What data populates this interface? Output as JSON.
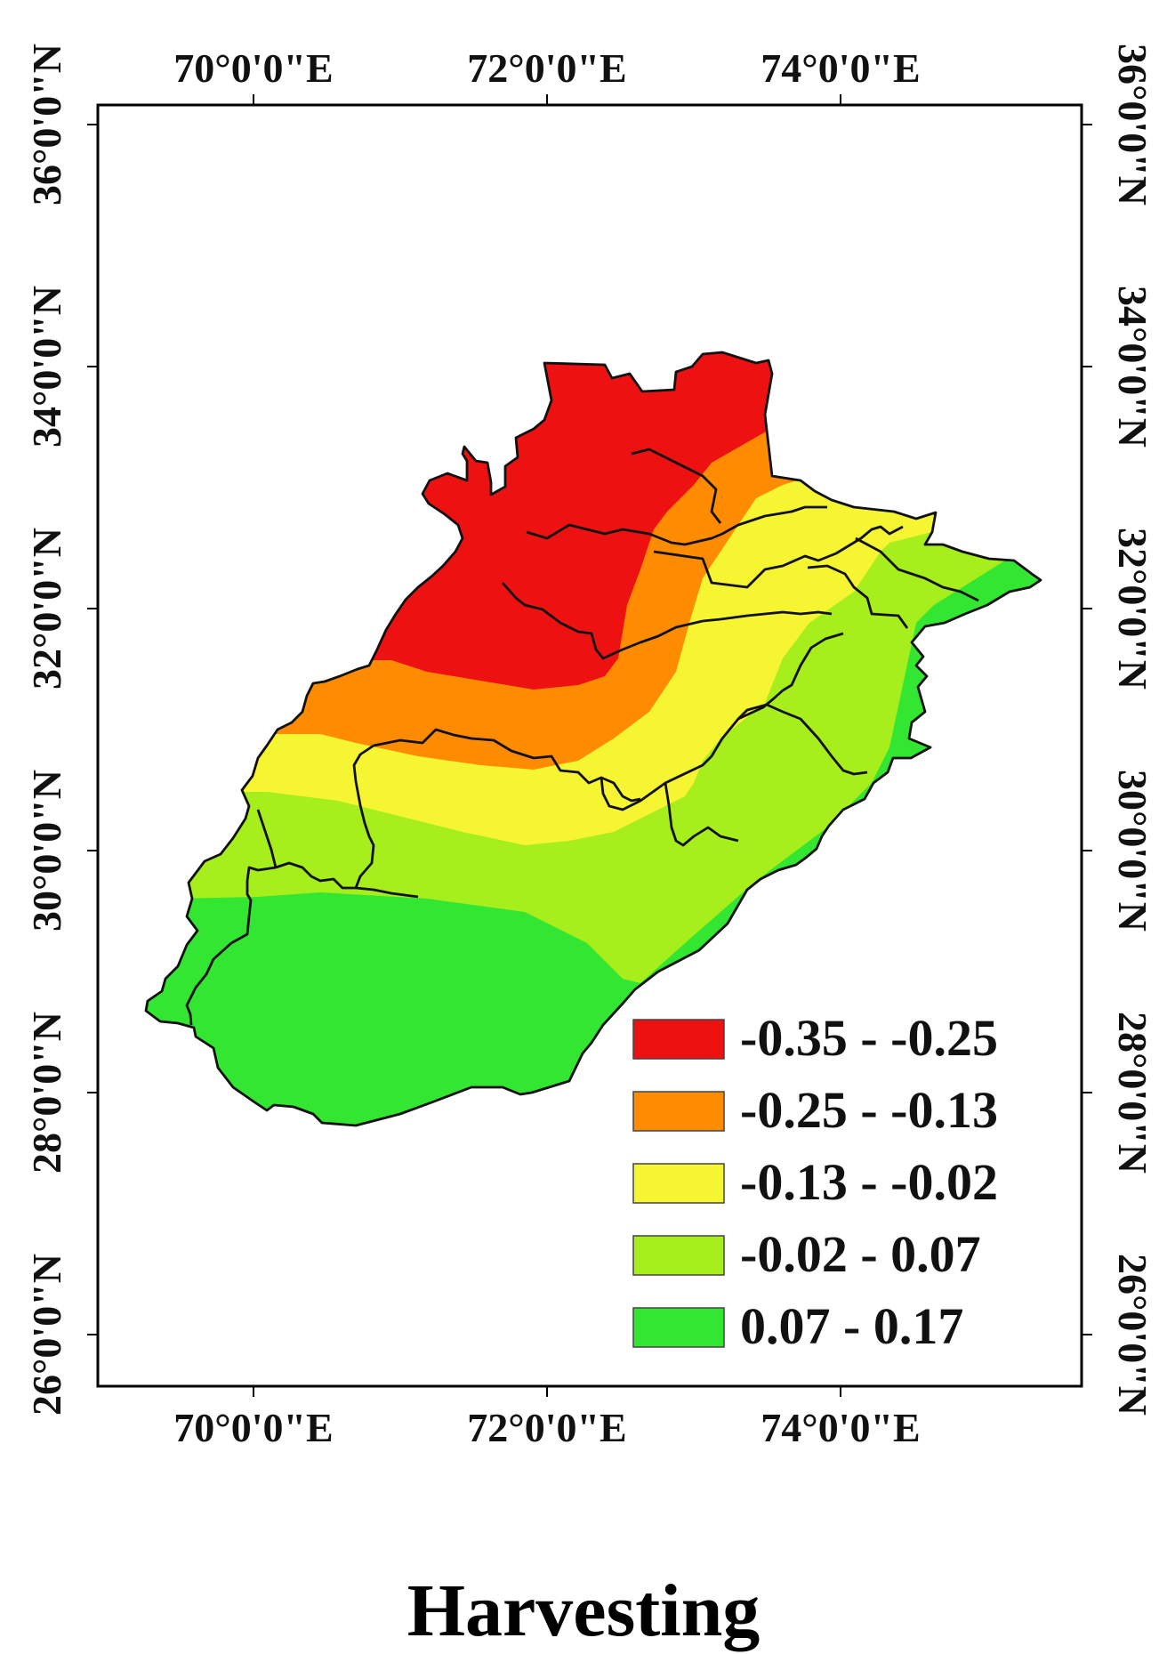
{
  "title": "Harvesting",
  "axes": {
    "x_ticks": [
      {
        "value": 70,
        "label": "70°0'0\"E"
      },
      {
        "value": 72,
        "label": "72°0'0\"E"
      },
      {
        "value": 74,
        "label": "74°0'0\"E"
      }
    ],
    "y_ticks": [
      {
        "value": 26,
        "label": "26°0'0\"N"
      },
      {
        "value": 28,
        "label": "28°0'0\"N"
      },
      {
        "value": 30,
        "label": "30°0'0\"N"
      },
      {
        "value": 32,
        "label": "32°0'0\"N"
      },
      {
        "value": 34,
        "label": "34°0'0\"N"
      },
      {
        "value": 36,
        "label": "36°0'0\"N"
      }
    ]
  },
  "legend": [
    {
      "label": "-0.35 - -0.25",
      "color": "#ee1111"
    },
    {
      "label": "-0.25 - -0.13",
      "color": "#ff8c00"
    },
    {
      "label": "-0.13 - -0.02",
      "color": "#f5f532"
    },
    {
      "label": "-0.02 - 0.07",
      "color": "#a6ee1c"
    },
    {
      "label": "0.07 - 0.17",
      "color": "#32e632"
    }
  ]
}
